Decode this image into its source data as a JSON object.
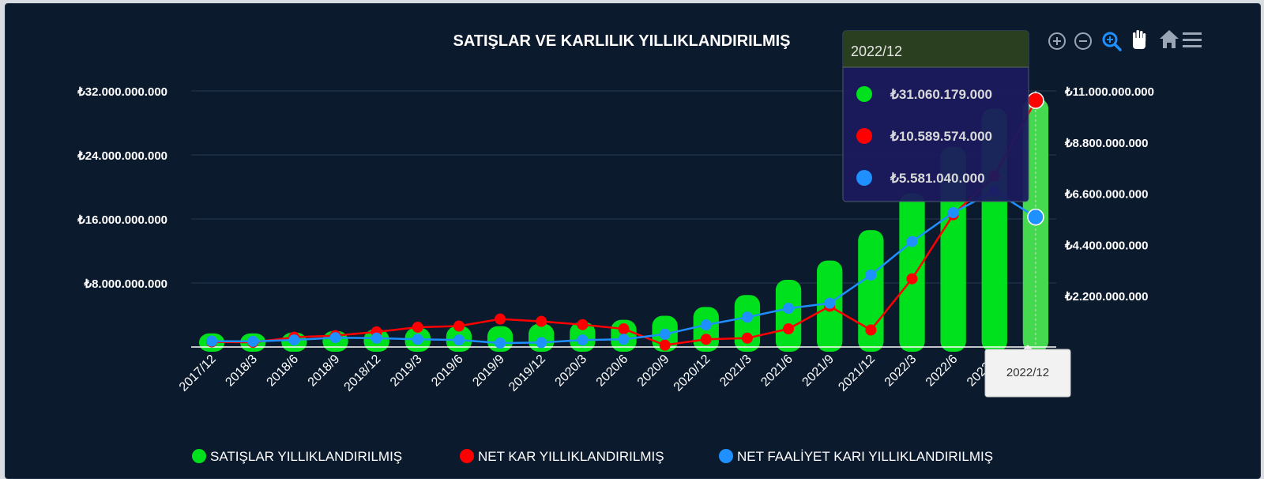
{
  "colors": {
    "sales": "#00e11e",
    "net_profit": "#ff0000",
    "operating_profit": "#1e90ff",
    "background": "#0c1a2e"
  },
  "toolbar": {
    "icons": [
      "zoom-in-icon",
      "zoom-out-icon",
      "selection-zoom-icon",
      "pan-icon",
      "home-icon",
      "menu-icon"
    ]
  },
  "chart_data": {
    "type": "bar",
    "title": "SATIŞLAR VE KARLILIK YILLIKLANDIRILMIŞ",
    "categories": [
      "2017/12",
      "2018/3",
      "2018/6",
      "2018/9",
      "2018/12",
      "2019/3",
      "2019/6",
      "2019/9",
      "2019/12",
      "2020/3",
      "2020/6",
      "2020/9",
      "2020/12",
      "2021/3",
      "2021/6",
      "2021/9",
      "2021/12",
      "2022/3",
      "2022/6",
      "2022/9",
      "2022/12"
    ],
    "category_labels_shown": [
      "2017/12",
      "2018/3",
      "2018/6",
      "2018/9",
      "2018/12",
      "2019/3",
      "2019/6",
      "2019/9",
      "2019/12",
      "2020/3",
      "2020/6",
      "2020/9",
      "2020/12",
      "2021/3",
      "2021/6",
      "2021/9",
      "2021/12",
      "2022/3",
      "2022/6",
      "2022/9",
      "2"
    ],
    "y_left": {
      "ticks": [
        "₺8.000.000.000",
        "₺16.000.000.000",
        "₺24.000.000.000",
        "₺32.000.000.000"
      ],
      "tick_values": [
        8000000000,
        16000000000,
        24000000000,
        32000000000
      ],
      "ylim": [
        0,
        32000000000
      ]
    },
    "y_right": {
      "ticks": [
        "₺2.200.000.000",
        "₺4.400.000.000",
        "₺6.600.000.000",
        "₺8.800.000.000",
        "₺11.000.000.000"
      ],
      "tick_values": [
        2200000000,
        4400000000,
        6600000000,
        8800000000,
        11000000000
      ],
      "ylim": [
        0,
        11000000000
      ]
    },
    "grid": true,
    "legend_position": "bottom-center",
    "series": [
      {
        "name": "SATIŞLAR YILLIKLANDIRILMIŞ",
        "type": "bar",
        "axis": "left",
        "values": [
          1700000000,
          1700000000,
          1800000000,
          2000000000,
          2200000000,
          2400000000,
          2600000000,
          2600000000,
          2900000000,
          3100000000,
          3400000000,
          3900000000,
          5000000000,
          6500000000,
          8400000000,
          10800000000,
          14600000000,
          19200000000,
          25000000000,
          29800000000,
          31060179000
        ]
      },
      {
        "name": "NET KAR YILLIKLANDIRILMIŞ",
        "type": "line",
        "axis": "right",
        "values": [
          220000000,
          200000000,
          420000000,
          490000000,
          650000000,
          850000000,
          900000000,
          1200000000,
          1100000000,
          960000000,
          780000000,
          80000000,
          330000000,
          380000000,
          780000000,
          1750000000,
          730000000,
          2930000000,
          5680000000,
          7350000000,
          10589574000
        ]
      },
      {
        "name": "NET FAALİYET KARI YILLIKLANDIRILMIŞ",
        "type": "line",
        "axis": "right",
        "values": [
          250000000,
          240000000,
          300000000,
          400000000,
          380000000,
          330000000,
          300000000,
          170000000,
          190000000,
          300000000,
          330000000,
          550000000,
          950000000,
          1280000000,
          1660000000,
          1880000000,
          3090000000,
          4530000000,
          5770000000,
          6700000000,
          5581040000
        ]
      }
    ],
    "tooltip": {
      "category": "2022/12",
      "values": [
        "₺31.060.179.000",
        "₺10.589.574.000",
        "₺5.581.040.000"
      ]
    },
    "crosshair_label": "2022/12"
  }
}
